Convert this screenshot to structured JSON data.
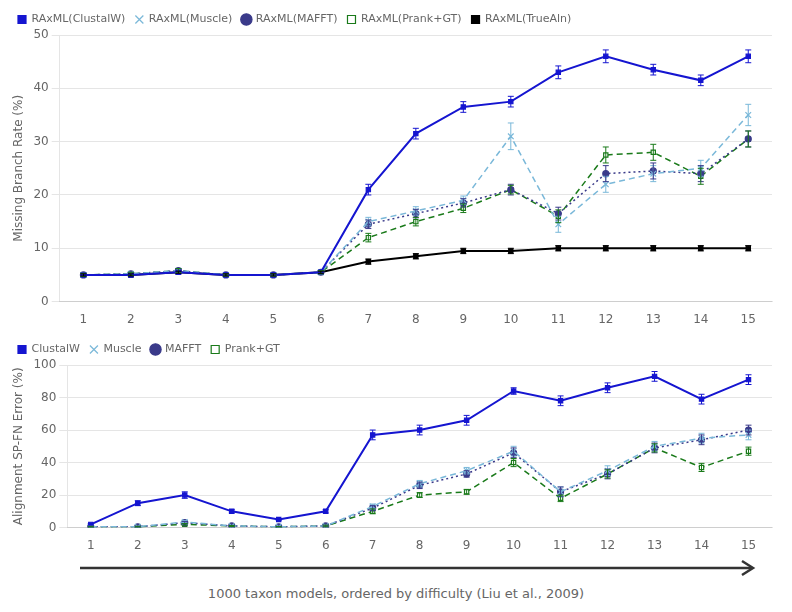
{
  "chart_data": [
    {
      "type": "line",
      "x": [
        1,
        2,
        3,
        4,
        5,
        6,
        7,
        8,
        9,
        10,
        11,
        12,
        13,
        14,
        15
      ],
      "xlim": [
        0.5,
        15.5
      ],
      "xticks": [
        1,
        2,
        3,
        4,
        5,
        6,
        7,
        8,
        9,
        10,
        11,
        12,
        13,
        14,
        15
      ],
      "ylim": [
        0,
        50
      ],
      "yticks": [
        0,
        10,
        20,
        30,
        40,
        50
      ],
      "ylabel": "Missing Branch Rate (%)",
      "grid": "y",
      "legend": "upper left",
      "series": [
        {
          "name": "RAxML(ClustalW)",
          "color": "#1515d0",
          "marker": "square",
          "line_style": "solid",
          "values": [
            5.0,
            5.0,
            5.5,
            5.0,
            5.0,
            5.5,
            21.0,
            31.5,
            36.5,
            37.5,
            43.0,
            46.0,
            43.5,
            41.5,
            46.0
          ],
          "errors": [
            0.3,
            0.2,
            0.3,
            0.2,
            0.2,
            0.3,
            1.0,
            1.0,
            1.0,
            1.0,
            1.2,
            1.2,
            1.0,
            1.0,
            1.2
          ]
        },
        {
          "name": "RAxML(Muscle)",
          "color": "#7ab8d9",
          "marker": "x",
          "line_style": "dashed",
          "values": [
            5.0,
            5.2,
            5.8,
            5.0,
            5.0,
            5.5,
            15.0,
            17.0,
            19.0,
            31.0,
            14.5,
            22.0,
            24.0,
            25.0,
            35.0
          ],
          "errors": [
            0.3,
            0.3,
            0.4,
            0.2,
            0.2,
            0.3,
            0.8,
            0.8,
            0.8,
            2.5,
            1.5,
            1.5,
            1.5,
            1.5,
            2.0
          ]
        },
        {
          "name": "RAxML(MAFFT)",
          "color": "#3a3a8a",
          "marker": "circle",
          "line_style": "dotted",
          "values": [
            5.0,
            5.2,
            5.8,
            5.0,
            5.0,
            5.5,
            14.5,
            16.5,
            18.5,
            21.0,
            16.5,
            24.0,
            24.5,
            24.0,
            30.5
          ],
          "errors": [
            0.3,
            0.3,
            0.4,
            0.2,
            0.2,
            0.3,
            0.8,
            0.8,
            0.8,
            1.0,
            1.2,
            1.5,
            1.5,
            1.5,
            1.5
          ]
        },
        {
          "name": "RAxML(Prank+GT)",
          "color": "#1a7a1a",
          "marker": "open_square",
          "line_style": "dashed",
          "values": [
            5.0,
            5.2,
            5.8,
            5.0,
            5.0,
            5.5,
            12.0,
            15.0,
            17.5,
            21.0,
            16.0,
            27.5,
            28.0,
            23.5,
            30.5
          ],
          "errors": [
            0.3,
            0.3,
            0.4,
            0.2,
            0.2,
            0.3,
            0.8,
            0.8,
            0.8,
            0.8,
            1.2,
            1.5,
            1.5,
            1.5,
            1.5
          ]
        },
        {
          "name": "RAxML(TrueAln)",
          "color": "#000000",
          "marker": "square",
          "line_style": "solid",
          "values": [
            5.0,
            5.0,
            5.5,
            5.0,
            5.0,
            5.5,
            7.5,
            8.5,
            9.5,
            9.5,
            10.0,
            10.0,
            10.0,
            10.0,
            10.0
          ],
          "errors": [
            0.2,
            0.2,
            0.2,
            0.2,
            0.2,
            0.2,
            0.5,
            0.5,
            0.5,
            0.5,
            0.5,
            0.5,
            0.5,
            0.5,
            0.5
          ]
        }
      ]
    },
    {
      "type": "line",
      "x": [
        1,
        2,
        3,
        4,
        5,
        6,
        7,
        8,
        9,
        10,
        11,
        12,
        13,
        14,
        15
      ],
      "xlim": [
        0.5,
        15.5
      ],
      "xticks": [
        1,
        2,
        3,
        4,
        5,
        6,
        7,
        8,
        9,
        10,
        11,
        12,
        13,
        14,
        15
      ],
      "ylim": [
        0,
        100
      ],
      "yticks": [
        0,
        20,
        40,
        60,
        80,
        100
      ],
      "ylabel": "Alignment SP-FN Error (%)",
      "xlabel": "1000 taxon models, ordered by difficulty (Liu et al., 2009)",
      "grid": "y",
      "legend": "upper left",
      "series": [
        {
          "name": "ClustalW",
          "color": "#1515d0",
          "marker": "square",
          "line_style": "solid",
          "values": [
            2.0,
            15.0,
            20.0,
            10.0,
            5.0,
            10.0,
            57.0,
            60.0,
            66.0,
            84.0,
            78.0,
            86.0,
            93.0,
            79.0,
            91.0
          ],
          "errors": [
            0.5,
            1.5,
            2.0,
            1.0,
            0.5,
            1.0,
            3.0,
            3.0,
            3.0,
            2.0,
            3.0,
            3.0,
            3.0,
            3.0,
            3.0
          ]
        },
        {
          "name": "Muscle",
          "color": "#7ab8d9",
          "marker": "x",
          "line_style": "dashed",
          "values": [
            0.5,
            0.5,
            3.5,
            1.0,
            0.5,
            1.0,
            13.0,
            27.0,
            35.0,
            47.0,
            22.0,
            35.0,
            50.0,
            55.0,
            57.0
          ],
          "errors": [
            0.3,
            0.3,
            0.8,
            0.3,
            0.2,
            0.5,
            1.5,
            2.0,
            2.0,
            3.0,
            3.0,
            3.0,
            3.0,
            3.0,
            3.0
          ]
        },
        {
          "name": "MAFFT",
          "color": "#3a3a8a",
          "marker": "circle",
          "line_style": "dotted",
          "values": [
            0.5,
            0.5,
            3.0,
            1.0,
            0.5,
            1.0,
            12.0,
            26.0,
            33.0,
            46.0,
            22.0,
            33.0,
            49.0,
            54.0,
            60.0
          ],
          "errors": [
            0.3,
            0.3,
            0.8,
            0.3,
            0.2,
            0.5,
            1.5,
            2.0,
            2.0,
            3.0,
            3.0,
            3.0,
            3.0,
            3.0,
            3.0
          ]
        },
        {
          "name": "Prank+GT",
          "color": "#1a7a1a",
          "marker": "open_square",
          "line_style": "dashed",
          "values": [
            0.5,
            0.5,
            2.0,
            1.0,
            0.5,
            1.0,
            10.0,
            20.0,
            22.0,
            40.0,
            18.0,
            33.0,
            49.0,
            37.0,
            47.0
          ],
          "errors": [
            0.3,
            0.3,
            0.5,
            0.3,
            0.2,
            0.5,
            1.5,
            1.5,
            1.5,
            2.5,
            2.0,
            2.5,
            2.5,
            2.5,
            2.5
          ]
        }
      ]
    }
  ]
}
